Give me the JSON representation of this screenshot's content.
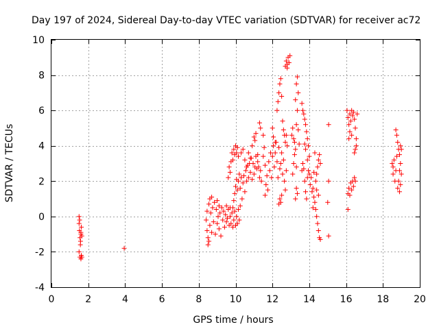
{
  "chart_data": {
    "type": "scatter",
    "title": "Day 197 of 2024, Sidereal Day-to-day VTEC variation (SDTVAR) for receiver ac72",
    "xlabel": "GPS time / hours",
    "ylabel": "SDTVAR / TECUs",
    "xlim": [
      0,
      20
    ],
    "ylim": [
      -4,
      10
    ],
    "x_ticks": [
      0,
      2,
      4,
      6,
      8,
      10,
      12,
      14,
      16,
      18,
      20
    ],
    "y_ticks": [
      -4,
      -2,
      0,
      2,
      4,
      6,
      8,
      10
    ],
    "grid": true,
    "marker": "+",
    "color": "#ff0000",
    "series": [
      {
        "name": "SDTVAR",
        "points": [
          [
            1.5,
            0.0
          ],
          [
            1.5,
            -0.4
          ],
          [
            1.52,
            -0.8
          ],
          [
            1.55,
            -1.2
          ],
          [
            1.57,
            -1.6
          ],
          [
            1.5,
            -2.0
          ],
          [
            1.55,
            -2.3
          ],
          [
            1.6,
            -2.4
          ],
          [
            1.62,
            -2.2
          ],
          [
            1.58,
            -1.4
          ],
          [
            1.6,
            -1.0
          ],
          [
            1.62,
            -0.6
          ],
          [
            1.65,
            -1.1
          ],
          [
            1.65,
            -2.3
          ],
          [
            1.53,
            -0.2
          ],
          [
            1.6,
            -0.9
          ],
          [
            3.95,
            -1.8
          ],
          [
            8.4,
            -0.2
          ],
          [
            8.45,
            -0.8
          ],
          [
            8.45,
            0.3
          ],
          [
            8.5,
            -1.2
          ],
          [
            8.5,
            -1.6
          ],
          [
            8.55,
            -1.4
          ],
          [
            8.55,
            0.7
          ],
          [
            8.6,
            1.0
          ],
          [
            8.6,
            -0.5
          ],
          [
            8.65,
            0.2
          ],
          [
            8.7,
            -0.9
          ],
          [
            8.7,
            1.1
          ],
          [
            8.75,
            0.5
          ],
          [
            8.8,
            -0.3
          ],
          [
            8.85,
            0.8
          ],
          [
            8.9,
            -1.0
          ],
          [
            8.95,
            0.4
          ],
          [
            9.0,
            -0.4
          ],
          [
            9.0,
            0.9
          ],
          [
            9.05,
            0.0
          ],
          [
            9.1,
            -0.7
          ],
          [
            9.1,
            0.6
          ],
          [
            9.15,
            0.2
          ],
          [
            9.2,
            -1.1
          ],
          [
            9.25,
            0.5
          ],
          [
            9.3,
            -0.2
          ],
          [
            9.35,
            0.3
          ],
          [
            9.4,
            -0.6
          ],
          [
            9.45,
            0.1
          ],
          [
            9.5,
            0.6
          ],
          [
            9.5,
            -0.3
          ],
          [
            9.55,
            -0.1
          ],
          [
            9.6,
            0.4
          ],
          [
            9.65,
            -0.5
          ],
          [
            9.7,
            0.5
          ],
          [
            9.7,
            0.0
          ],
          [
            9.75,
            -0.4
          ],
          [
            9.8,
            0.2
          ],
          [
            9.85,
            -0.6
          ],
          [
            9.9,
            -0.2
          ],
          [
            9.95,
            0.3
          ],
          [
            10.0,
            -0.5
          ],
          [
            10.05,
            0.0
          ],
          [
            10.1,
            -0.4
          ],
          [
            10.15,
            0.4
          ],
          [
            10.2,
            -0.2
          ],
          [
            10.25,
            0.6
          ],
          [
            9.85,
            0.5
          ],
          [
            9.9,
            0.9
          ],
          [
            9.95,
            1.3
          ],
          [
            10.0,
            1.7
          ],
          [
            10.05,
            2.1
          ],
          [
            10.1,
            1.5
          ],
          [
            10.15,
            2.0
          ],
          [
            10.2,
            2.4
          ],
          [
            10.25,
            1.6
          ],
          [
            10.3,
            2.2
          ],
          [
            10.35,
            1.0
          ],
          [
            10.4,
            1.9
          ],
          [
            10.45,
            2.3
          ],
          [
            10.5,
            1.4
          ],
          [
            10.55,
            2.6
          ],
          [
            10.6,
            2.0
          ],
          [
            10.65,
            2.9
          ],
          [
            10.7,
            2.2
          ],
          [
            10.75,
            3.0
          ],
          [
            10.8,
            2.5
          ],
          [
            10.85,
            3.3
          ],
          [
            10.9,
            2.1
          ],
          [
            10.95,
            3.0
          ],
          [
            11.0,
            2.4
          ],
          [
            11.05,
            2.8
          ],
          [
            11.1,
            3.4
          ],
          [
            11.15,
            2.7
          ],
          [
            11.2,
            3.1
          ],
          [
            9.6,
            2.2
          ],
          [
            9.65,
            2.8
          ],
          [
            9.7,
            2.5
          ],
          [
            9.75,
            3.1
          ],
          [
            9.8,
            3.6
          ],
          [
            9.85,
            3.2
          ],
          [
            9.9,
            3.8
          ],
          [
            9.95,
            3.5
          ],
          [
            10.0,
            4.0
          ],
          [
            10.05,
            3.6
          ],
          [
            10.1,
            3.9
          ],
          [
            10.15,
            3.4
          ],
          [
            10.3,
            3.6
          ],
          [
            10.4,
            3.8
          ],
          [
            10.5,
            3.2
          ],
          [
            10.6,
            2.8
          ],
          [
            10.7,
            3.6
          ],
          [
            10.8,
            3.3
          ],
          [
            10.9,
            4.0
          ],
          [
            11.0,
            4.5
          ],
          [
            11.05,
            4.3
          ],
          [
            11.1,
            4.7
          ],
          [
            11.3,
            5.3
          ],
          [
            11.35,
            5.0
          ],
          [
            11.3,
            2.2
          ],
          [
            11.35,
            2.6
          ],
          [
            11.4,
            2.0
          ],
          [
            11.2,
            3.5
          ],
          [
            11.25,
            2.8
          ],
          [
            11.5,
            4.6
          ],
          [
            11.5,
            3.4
          ],
          [
            11.55,
            3.9
          ],
          [
            11.6,
            2.9
          ],
          [
            11.6,
            1.2
          ],
          [
            11.65,
            1.8
          ],
          [
            11.7,
            2.3
          ],
          [
            11.75,
            1.5
          ],
          [
            11.8,
            3.1
          ],
          [
            11.85,
            2.6
          ],
          [
            11.9,
            3.6
          ],
          [
            11.95,
            2.2
          ],
          [
            12.0,
            3.4
          ],
          [
            12.05,
            4.0
          ],
          [
            12.1,
            2.8
          ],
          [
            12.15,
            3.6
          ],
          [
            12.2,
            4.2
          ],
          [
            12.25,
            3.1
          ],
          [
            12.3,
            2.2
          ],
          [
            12.35,
            3.9
          ],
          [
            12.4,
            2.7
          ],
          [
            12.45,
            3.0
          ],
          [
            12.5,
            3.6
          ],
          [
            12.55,
            2.4
          ],
          [
            12.6,
            3.2
          ],
          [
            12.65,
            2.0
          ],
          [
            12.7,
            1.5
          ],
          [
            12.75,
            2.6
          ],
          [
            12.0,
            5.0
          ],
          [
            12.05,
            4.5
          ],
          [
            12.15,
            4.2
          ],
          [
            12.25,
            6.0
          ],
          [
            12.3,
            6.5
          ],
          [
            12.35,
            7.0
          ],
          [
            12.4,
            7.5
          ],
          [
            12.45,
            7.8
          ],
          [
            12.5,
            6.8
          ],
          [
            12.55,
            5.4
          ],
          [
            12.6,
            4.9
          ],
          [
            12.65,
            4.6
          ],
          [
            12.7,
            4.2
          ],
          [
            12.75,
            4.6
          ],
          [
            12.8,
            4.0
          ],
          [
            12.35,
            0.7
          ],
          [
            12.4,
            1.0
          ],
          [
            12.45,
            0.8
          ],
          [
            12.5,
            1.2
          ],
          [
            12.7,
            8.5
          ],
          [
            12.75,
            8.8
          ],
          [
            12.8,
            8.4
          ],
          [
            12.85,
            9.0
          ],
          [
            12.9,
            8.7
          ],
          [
            12.95,
            9.1
          ],
          [
            12.8,
            8.6
          ],
          [
            13.05,
            4.6
          ],
          [
            13.1,
            5.0
          ],
          [
            13.15,
            4.4
          ],
          [
            13.2,
            4.2
          ],
          [
            13.25,
            3.8
          ],
          [
            13.3,
            5.2
          ],
          [
            13.35,
            6.0
          ],
          [
            13.4,
            7.0
          ],
          [
            13.3,
            7.5
          ],
          [
            13.35,
            7.9
          ],
          [
            13.25,
            6.6
          ],
          [
            13.4,
            4.9
          ],
          [
            13.45,
            4.1
          ],
          [
            13.2,
            3.5
          ],
          [
            13.15,
            3.0
          ],
          [
            13.1,
            2.4
          ],
          [
            13.3,
            2.8
          ],
          [
            13.25,
            1.0
          ],
          [
            13.35,
            1.3
          ],
          [
            13.3,
            1.6
          ],
          [
            13.6,
            2.6
          ],
          [
            13.65,
            3.0
          ],
          [
            13.7,
            2.7
          ],
          [
            13.75,
            2.0
          ],
          [
            13.6,
            6.4
          ],
          [
            13.65,
            6.0
          ],
          [
            13.7,
            5.8
          ],
          [
            13.75,
            5.5
          ],
          [
            13.8,
            5.2
          ],
          [
            13.85,
            4.8
          ],
          [
            13.9,
            4.4
          ],
          [
            13.95,
            4.0
          ],
          [
            14.0,
            3.4
          ],
          [
            13.75,
            4.1
          ],
          [
            13.8,
            3.8
          ],
          [
            13.9,
            3.2
          ],
          [
            13.95,
            2.6
          ],
          [
            13.8,
            1.4
          ],
          [
            13.85,
            1.0
          ],
          [
            13.9,
            2.2
          ],
          [
            14.0,
            2.4
          ],
          [
            14.05,
            1.8
          ],
          [
            14.1,
            2.2
          ],
          [
            14.15,
            1.4
          ],
          [
            14.2,
            1.6
          ],
          [
            14.25,
            1.1
          ],
          [
            14.3,
            0.8
          ],
          [
            14.35,
            0.4
          ],
          [
            14.4,
            0.0
          ],
          [
            14.45,
            -0.4
          ],
          [
            14.5,
            -0.8
          ],
          [
            14.55,
            -1.2
          ],
          [
            14.6,
            -1.3
          ],
          [
            14.35,
            2.0
          ],
          [
            14.4,
            2.4
          ],
          [
            14.45,
            2.8
          ],
          [
            14.5,
            3.2
          ],
          [
            14.55,
            3.5
          ],
          [
            14.6,
            3.0
          ],
          [
            14.5,
            1.2
          ],
          [
            14.4,
            1.5
          ],
          [
            14.25,
            2.5
          ],
          [
            14.2,
            0.5
          ],
          [
            14.3,
            3.6
          ],
          [
            15.0,
            0.8
          ],
          [
            15.05,
            2.0
          ],
          [
            15.05,
            5.2
          ],
          [
            15.05,
            -1.1
          ],
          [
            16.1,
            0.4
          ],
          [
            16.1,
            1.3
          ],
          [
            16.15,
            1.6
          ],
          [
            16.2,
            1.2
          ],
          [
            16.25,
            1.9
          ],
          [
            16.3,
            1.5
          ],
          [
            16.35,
            2.0
          ],
          [
            16.4,
            1.7
          ],
          [
            16.45,
            2.2
          ],
          [
            16.5,
            2.0
          ],
          [
            16.05,
            6.0
          ],
          [
            16.1,
            5.6
          ],
          [
            16.15,
            5.2
          ],
          [
            16.2,
            5.8
          ],
          [
            16.25,
            5.4
          ],
          [
            16.3,
            6.0
          ],
          [
            16.35,
            5.7
          ],
          [
            16.4,
            5.9
          ],
          [
            16.45,
            5.5
          ],
          [
            16.5,
            5.0
          ],
          [
            16.55,
            4.4
          ],
          [
            16.5,
            3.8
          ],
          [
            16.45,
            3.6
          ],
          [
            16.6,
            5.8
          ],
          [
            16.55,
            4.0
          ],
          [
            16.2,
            4.8
          ],
          [
            16.15,
            4.4
          ],
          [
            16.3,
            4.6
          ],
          [
            18.5,
            3.0
          ],
          [
            18.55,
            2.4
          ],
          [
            18.6,
            3.2
          ],
          [
            18.55,
            2.8
          ],
          [
            18.65,
            2.0
          ],
          [
            18.7,
            2.6
          ],
          [
            18.75,
            3.4
          ],
          [
            18.7,
            4.9
          ],
          [
            18.75,
            4.6
          ],
          [
            18.8,
            4.2
          ],
          [
            18.85,
            3.8
          ],
          [
            18.9,
            3.5
          ],
          [
            18.95,
            3.0
          ],
          [
            18.9,
            2.6
          ],
          [
            18.85,
            2.0
          ],
          [
            18.8,
            1.6
          ],
          [
            18.9,
            1.4
          ],
          [
            18.95,
            1.8
          ],
          [
            19.0,
            2.4
          ],
          [
            18.95,
            4.0
          ],
          [
            19.0,
            3.8
          ]
        ]
      }
    ]
  }
}
